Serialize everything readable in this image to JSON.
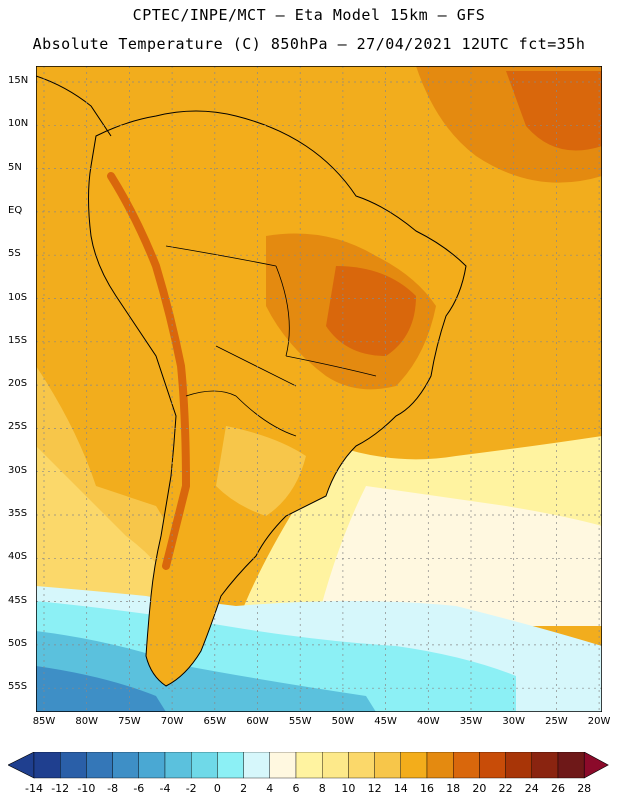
{
  "header": {
    "line1": "CPTEC/INPE/MCT –  Eta Model 15km – GFS",
    "line2": "Absolute Temperature (C) 850hPa – 27/04/2021 12UTC fct=35h"
  },
  "map": {
    "lat_labels": [
      "15N",
      "10N",
      "5N",
      "EQ",
      "5S",
      "10S",
      "15S",
      "20S",
      "25S",
      "30S",
      "35S",
      "40S",
      "45S",
      "50S",
      "55S"
    ],
    "lon_labels": [
      "85W",
      "80W",
      "75W",
      "70W",
      "65W",
      "60W",
      "55W",
      "50W",
      "45W",
      "40W",
      "35W",
      "30W",
      "25W",
      "20W"
    ],
    "grid": "dotted"
  },
  "legend": {
    "colors": [
      "#1f3f8f",
      "#2a5fa8",
      "#3477b8",
      "#3e8fc6",
      "#4aa8d3",
      "#5bc1dd",
      "#6fd9e8",
      "#8cf0f5",
      "#d6f7fb",
      "#fff8e0",
      "#fff3a0",
      "#fde98a",
      "#fbd86a",
      "#f7c64a",
      "#f3ad1b",
      "#e48a10",
      "#d9670c",
      "#c84c08",
      "#a83507",
      "#8a2410",
      "#6e1818"
    ],
    "ticks": [
      "-14",
      "-12",
      "-10",
      "-8",
      "-6",
      "-4",
      "-2",
      "0",
      "2",
      "4",
      "6",
      "8",
      "10",
      "12",
      "14",
      "16",
      "18",
      "20",
      "22",
      "24",
      "26",
      "28"
    ]
  },
  "colors": {
    "ocean_north": "#f0a91e",
    "ocean_mid": "#fde98a",
    "ocean_cool": "#d6f7fb",
    "ocean_cold": "#4aa8d3",
    "land_warm": "#e48a10",
    "land_hot": "#d9670c"
  }
}
